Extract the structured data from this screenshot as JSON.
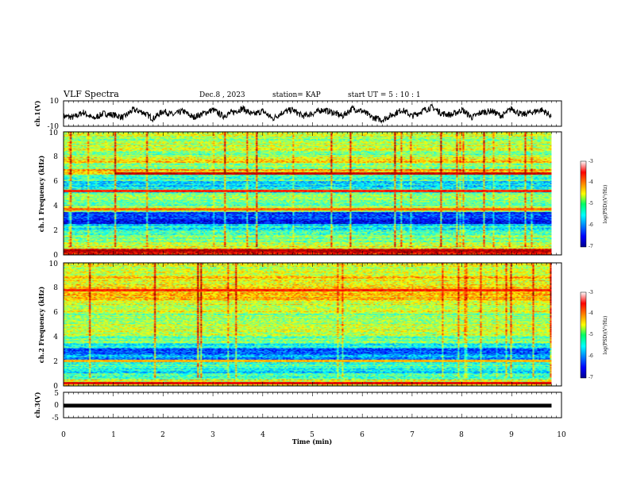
{
  "header": {
    "title": "VLF Spectra",
    "date": "Dec.8 , 2023",
    "station": "station= KAP",
    "start": "start UT = 5 : 10 : 1"
  },
  "chart_data": [
    {
      "type": "line",
      "panel": "ch1-waveform",
      "ylabel": "ch.1(V)",
      "ylim": [
        -10,
        10
      ],
      "yticks": [
        "10",
        "-10"
      ],
      "xlim": [
        0,
        10
      ],
      "x": [
        0.0,
        0.2,
        0.4,
        0.6,
        0.8,
        1.0,
        1.2,
        1.4,
        1.6,
        1.8,
        2.0,
        2.2,
        2.4,
        2.6,
        2.8,
        3.0,
        3.2,
        3.4,
        3.6,
        3.8,
        4.0,
        4.2,
        4.4,
        4.6,
        4.8,
        5.0,
        5.2,
        5.4,
        5.6,
        5.8,
        6.0,
        6.2,
        6.4,
        6.6,
        6.8,
        7.0,
        7.2,
        7.4,
        7.6,
        7.8,
        8.0,
        8.2,
        8.4,
        8.6,
        8.8,
        9.0,
        9.2,
        9.4,
        9.6,
        9.8
      ],
      "y": [
        -2,
        -3,
        1,
        -4,
        0,
        -1,
        -3,
        3,
        1,
        -4,
        2,
        -1,
        2,
        -3,
        0,
        3,
        -2,
        1,
        4,
        -1,
        2,
        -4,
        1,
        3,
        -2,
        0,
        3,
        1,
        -2,
        4,
        2,
        -3,
        -5,
        -1,
        3,
        -2,
        2,
        5,
        0,
        -1,
        3,
        -3,
        1,
        2,
        -2,
        4,
        -1,
        1,
        3,
        -2
      ]
    },
    {
      "type": "heatmap",
      "panel": "ch1-spectrogram",
      "ylabel": "ch.1 Frequency (kHz)",
      "yticks": [
        "0",
        "2",
        "4",
        "6",
        "8",
        "10"
      ],
      "ylim": [
        0,
        10
      ],
      "xlim": [
        0,
        9.8
      ],
      "zlim": [
        -7,
        -3
      ],
      "colorbar_label": "log(PSD)(V²/Hz)",
      "colorbar_ticks": [
        "-3",
        "-4",
        "-5",
        "-6",
        "-7"
      ],
      "freq_khz": [
        0.25,
        0.75,
        1.25,
        1.75,
        2.25,
        2.75,
        3.25,
        3.75,
        4.25,
        4.75,
        5.25,
        5.75,
        6.25,
        6.75,
        7.25,
        7.75,
        8.25,
        8.75,
        9.25,
        9.75
      ],
      "mean_log_psd": [
        -3.6,
        -4.6,
        -4.9,
        -5.1,
        -5.5,
        -6.4,
        -6.3,
        -5.0,
        -5.2,
        -4.8,
        -5.3,
        -5.6,
        -5.2,
        -4.3,
        -4.9,
        -4.5,
        -5.0,
        -4.6,
        -4.9,
        -4.8
      ],
      "lines": [
        {
          "freq_khz": 6.6,
          "t_start": 1.05,
          "t_end": 9.8,
          "log_psd": -3.3
        },
        {
          "freq_khz": 5.2,
          "t_start": 0.0,
          "t_end": 9.8,
          "log_psd": -3.6
        },
        {
          "freq_khz": 3.7,
          "t_start": 0.0,
          "t_end": 9.8,
          "log_psd": -3.9
        },
        {
          "freq_khz": 0.3,
          "t_start": 0.0,
          "t_end": 9.8,
          "log_psd": -3.2
        }
      ]
    },
    {
      "type": "heatmap",
      "panel": "ch2-spectrogram",
      "ylabel": "ch.2 Frequency (kHz)",
      "yticks": [
        "0",
        "2",
        "4",
        "6",
        "8",
        "10"
      ],
      "ylim": [
        0,
        10
      ],
      "xlim": [
        0,
        9.8
      ],
      "zlim": [
        -7,
        -3
      ],
      "colorbar_label": "log(PSD)(V²/Hz)",
      "colorbar_ticks": [
        "-3",
        "-4",
        "-5",
        "-6",
        "-7"
      ],
      "freq_khz": [
        0.25,
        0.75,
        1.25,
        1.75,
        2.25,
        2.75,
        3.25,
        3.75,
        4.25,
        4.75,
        5.25,
        5.75,
        6.25,
        6.75,
        7.25,
        7.75,
        8.25,
        8.75,
        9.25,
        9.75
      ],
      "mean_log_psd": [
        -4.4,
        -5.2,
        -5.5,
        -5.4,
        -5.8,
        -6.3,
        -5.6,
        -5.0,
        -4.8,
        -4.6,
        -4.8,
        -4.9,
        -4.7,
        -4.6,
        -4.3,
        -4.2,
        -4.5,
        -4.4,
        -4.5,
        -4.6
      ],
      "lines": [
        {
          "freq_khz": 7.8,
          "t_start": 0.0,
          "t_end": 9.8,
          "log_psd": -3.6
        },
        {
          "freq_khz": 2.0,
          "t_start": 0.0,
          "t_end": 9.8,
          "log_psd": -4.2
        },
        {
          "freq_khz": 0.2,
          "t_start": 0.0,
          "t_end": 9.8,
          "log_psd": -3.4
        }
      ]
    },
    {
      "type": "line",
      "panel": "ch3-waveform",
      "ylabel": "ch.3(V)",
      "ylim": [
        -5,
        5
      ],
      "yticks": [
        "5",
        "0",
        "-5"
      ],
      "xlim": [
        0,
        10
      ],
      "x": [
        0,
        9.8
      ],
      "y_min": [
        -1,
        -1
      ],
      "y_max": [
        0.5,
        0.5
      ]
    }
  ],
  "xaxis": {
    "label": "Time (min)",
    "ticks": [
      "0",
      "1",
      "2",
      "3",
      "4",
      "5",
      "6",
      "7",
      "8",
      "9",
      "10"
    ]
  }
}
